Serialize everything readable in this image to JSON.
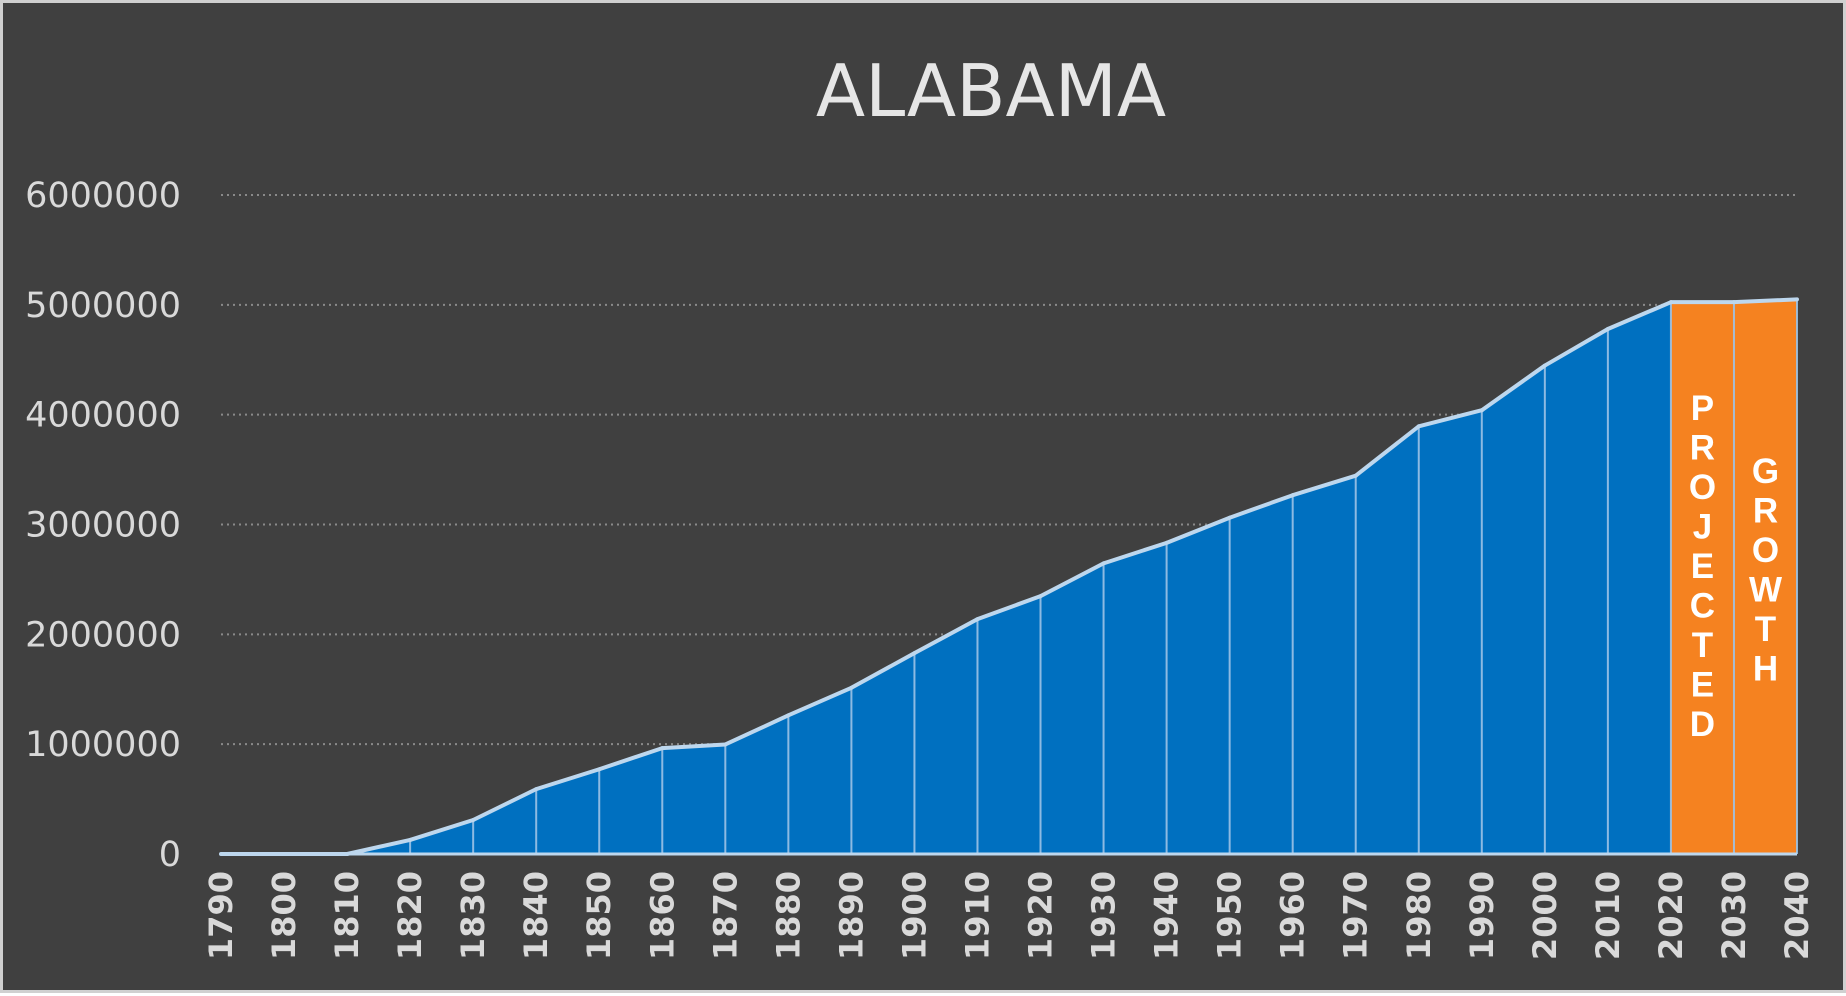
{
  "chart_data": {
    "type": "area",
    "title": "ALABAMA",
    "xlabel": "",
    "ylabel": "",
    "ylim": [
      0,
      6000000
    ],
    "yticks": [
      "0",
      "1000000",
      "2000000",
      "3000000",
      "4000000",
      "5000000",
      "6000000"
    ],
    "grid": true,
    "legend": "none",
    "x": [
      1790,
      1800,
      1810,
      1820,
      1830,
      1840,
      1850,
      1860,
      1870,
      1880,
      1890,
      1900,
      1910,
      1920,
      1930,
      1940,
      1950,
      1960,
      1970,
      1980,
      1990,
      2000,
      2010,
      2020,
      2030,
      2040
    ],
    "series": [
      {
        "values": [
          0,
          0,
          0,
          127901,
          309527,
          590756,
          771623,
          964201,
          996992,
          1262505,
          1513401,
          1828697,
          2138093,
          2348174,
          2646248,
          2832961,
          3061743,
          3266740,
          3444165,
          3893888,
          4040587,
          4447100,
          4779736,
          5024279,
          5024279,
          5050000
        ],
        "color": "#0070c0"
      }
    ],
    "projected_start": 2020,
    "projected_color": "#f58220",
    "line_color": "#bdd7ee",
    "annotations": [
      "PROJECTED",
      "GROWTH"
    ]
  }
}
